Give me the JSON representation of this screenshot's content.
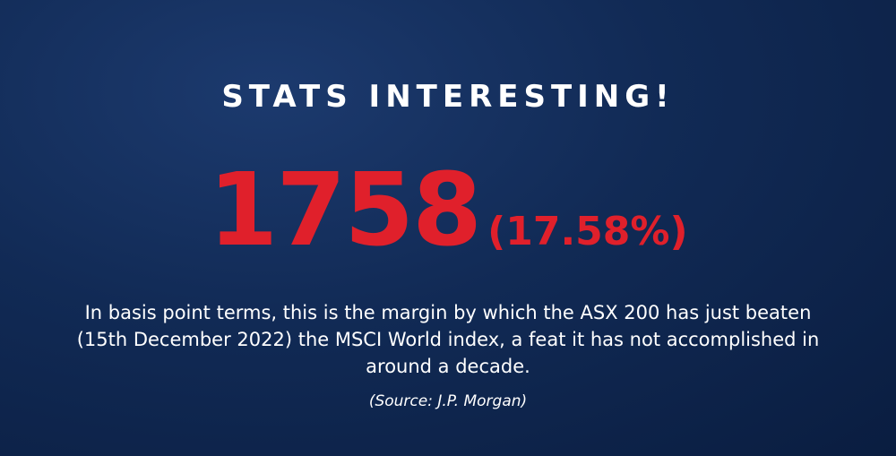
{
  "header": {
    "title": "STATS INTERESTING!"
  },
  "stat": {
    "number": "1758",
    "percent": "(17.58%)"
  },
  "body": {
    "description": "In basis point terms, this is the margin by which the ASX 200 has just beaten (15th December 2022) the MSCI World index, a feat it has not accomplished in around a decade.",
    "source": "(Source: J.P. Morgan)"
  }
}
